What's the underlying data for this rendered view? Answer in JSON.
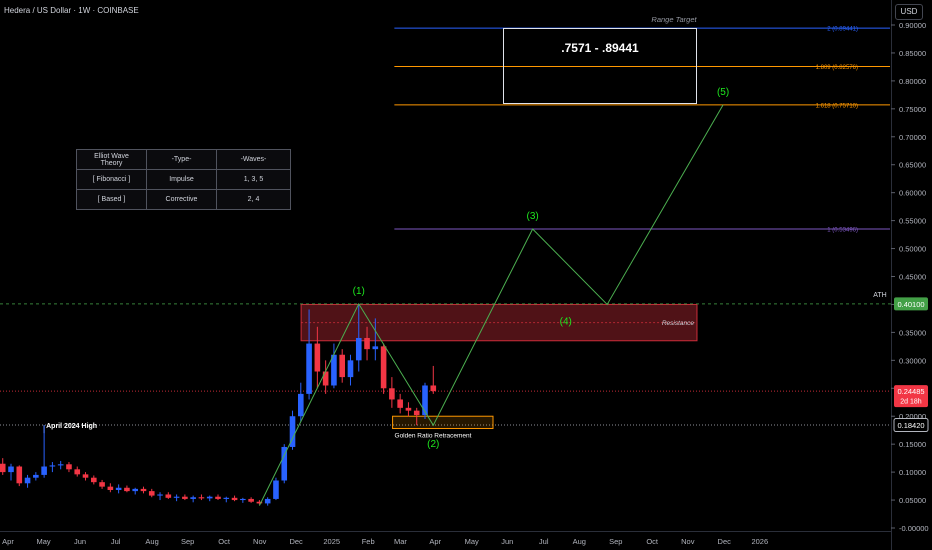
{
  "header": {
    "title": "Hedera / US Dollar · 1W · COINBASE",
    "currency": "USD"
  },
  "table": {
    "rows": [
      [
        "Elliot Wave Theory",
        "-Type-",
        "-Waves-"
      ],
      [
        "[ Fibonacci ]",
        "Impulse",
        "1, 3, 5"
      ],
      [
        "[ Based ]",
        "Corrective",
        "2, 4"
      ]
    ]
  },
  "annotations": {
    "range_target_label": "Range Target",
    "range_text": ".7571 - .89441",
    "resistance_label": "Resistance",
    "golden_label": "Golden Ratio Retracement",
    "april_high_label": "April 2024 High",
    "ath_label": "ATH"
  },
  "colors": {
    "background": "#000000",
    "up": "#2962ff",
    "down": "#f23645",
    "wave": "#4caf50",
    "wave_label": "#1ee81e",
    "fib_outer": "#2962ff",
    "fib_orange": "#ff9800",
    "fib_one": "#7e57c2",
    "resistance": "#f23645",
    "golden_box": "#ff9800",
    "ath_badge": "#43a047",
    "price_badge": "#f23645",
    "text": "#d1d4dc"
  },
  "chart_data": {
    "type": "candlestick",
    "y_axis": {
      "range": [
        0.0,
        0.9
      ],
      "ticks": [
        "0.90000",
        "0.85000",
        "0.80000",
        "0.75000",
        "0.70000",
        "0.65000",
        "0.60000",
        "0.55000",
        "0.50000",
        "0.45000",
        "0.40000",
        "0.35000",
        "0.30000",
        "0.25000",
        "0.20000",
        "0.15000",
        "0.10000",
        "0.05000",
        "-0.00000"
      ]
    },
    "x_axis": {
      "ticks": [
        "Apr",
        "May",
        "Jun",
        "Jul",
        "Aug",
        "Sep",
        "Oct",
        "Nov",
        "Dec",
        "2025",
        "Feb",
        "Mar",
        "Apr",
        "May",
        "Jun",
        "Jul",
        "Aug",
        "Sep",
        "Oct",
        "Nov",
        "Dec",
        "2026"
      ],
      "tick_weeks": [
        0,
        4.3,
        8.7,
        13,
        17.4,
        21.7,
        26.1,
        30.4,
        34.8,
        39.1,
        43.5,
        47.4,
        51.6,
        56,
        60.3,
        64.7,
        69,
        73.4,
        77.8,
        82.1,
        86.5,
        90.8
      ]
    },
    "candles": [
      {
        "w": -2,
        "o": 0.12,
        "h": 0.13,
        "l": 0.105,
        "c": 0.115
      },
      {
        "w": -1,
        "o": 0.115,
        "h": 0.125,
        "l": 0.095,
        "c": 0.1
      },
      {
        "w": 0,
        "o": 0.1,
        "h": 0.115,
        "l": 0.085,
        "c": 0.11
      },
      {
        "w": 1,
        "o": 0.11,
        "h": 0.112,
        "l": 0.075,
        "c": 0.08
      },
      {
        "w": 2,
        "o": 0.08,
        "h": 0.095,
        "l": 0.072,
        "c": 0.09
      },
      {
        "w": 3,
        "o": 0.09,
        "h": 0.1,
        "l": 0.085,
        "c": 0.095
      },
      {
        "w": 4,
        "o": 0.095,
        "h": 0.184,
        "l": 0.09,
        "c": 0.11
      },
      {
        "w": 5,
        "o": 0.11,
        "h": 0.118,
        "l": 0.1,
        "c": 0.112
      },
      {
        "w": 6,
        "o": 0.112,
        "h": 0.12,
        "l": 0.105,
        "c": 0.114
      },
      {
        "w": 7,
        "o": 0.114,
        "h": 0.118,
        "l": 0.1,
        "c": 0.105
      },
      {
        "w": 8,
        "o": 0.105,
        "h": 0.11,
        "l": 0.092,
        "c": 0.096
      },
      {
        "w": 9,
        "o": 0.096,
        "h": 0.1,
        "l": 0.085,
        "c": 0.09
      },
      {
        "w": 10,
        "o": 0.09,
        "h": 0.094,
        "l": 0.078,
        "c": 0.082
      },
      {
        "w": 11,
        "o": 0.082,
        "h": 0.086,
        "l": 0.07,
        "c": 0.074
      },
      {
        "w": 12,
        "o": 0.074,
        "h": 0.08,
        "l": 0.064,
        "c": 0.068
      },
      {
        "w": 13,
        "o": 0.068,
        "h": 0.078,
        "l": 0.062,
        "c": 0.072
      },
      {
        "w": 14,
        "o": 0.072,
        "h": 0.076,
        "l": 0.064,
        "c": 0.066
      },
      {
        "w": 15,
        "o": 0.066,
        "h": 0.072,
        "l": 0.06,
        "c": 0.07
      },
      {
        "w": 16,
        "o": 0.07,
        "h": 0.074,
        "l": 0.062,
        "c": 0.066
      },
      {
        "w": 17,
        "o": 0.066,
        "h": 0.07,
        "l": 0.055,
        "c": 0.058
      },
      {
        "w": 18,
        "o": 0.058,
        "h": 0.064,
        "l": 0.05,
        "c": 0.06
      },
      {
        "w": 19,
        "o": 0.06,
        "h": 0.064,
        "l": 0.052,
        "c": 0.054
      },
      {
        "w": 20,
        "o": 0.054,
        "h": 0.06,
        "l": 0.048,
        "c": 0.056
      },
      {
        "w": 21,
        "o": 0.056,
        "h": 0.06,
        "l": 0.05,
        "c": 0.052
      },
      {
        "w": 22,
        "o": 0.052,
        "h": 0.058,
        "l": 0.046,
        "c": 0.055
      },
      {
        "w": 23,
        "o": 0.055,
        "h": 0.06,
        "l": 0.05,
        "c": 0.053
      },
      {
        "w": 24,
        "o": 0.053,
        "h": 0.058,
        "l": 0.048,
        "c": 0.056
      },
      {
        "w": 25,
        "o": 0.056,
        "h": 0.06,
        "l": 0.05,
        "c": 0.052
      },
      {
        "w": 26,
        "o": 0.052,
        "h": 0.056,
        "l": 0.046,
        "c": 0.054
      },
      {
        "w": 27,
        "o": 0.054,
        "h": 0.058,
        "l": 0.048,
        "c": 0.05
      },
      {
        "w": 28,
        "o": 0.05,
        "h": 0.054,
        "l": 0.045,
        "c": 0.052
      },
      {
        "w": 29,
        "o": 0.052,
        "h": 0.055,
        "l": 0.045,
        "c": 0.047
      },
      {
        "w": 30,
        "o": 0.047,
        "h": 0.05,
        "l": 0.042,
        "c": 0.044
      },
      {
        "w": 31,
        "o": 0.044,
        "h": 0.055,
        "l": 0.04,
        "c": 0.052
      },
      {
        "w": 32,
        "o": 0.052,
        "h": 0.09,
        "l": 0.05,
        "c": 0.085
      },
      {
        "w": 33,
        "o": 0.085,
        "h": 0.15,
        "l": 0.08,
        "c": 0.145
      },
      {
        "w": 34,
        "o": 0.145,
        "h": 0.21,
        "l": 0.14,
        "c": 0.2
      },
      {
        "w": 35,
        "o": 0.2,
        "h": 0.26,
        "l": 0.19,
        "c": 0.24
      },
      {
        "w": 36,
        "o": 0.24,
        "h": 0.391,
        "l": 0.23,
        "c": 0.33
      },
      {
        "w": 37,
        "o": 0.33,
        "h": 0.36,
        "l": 0.25,
        "c": 0.28
      },
      {
        "w": 38,
        "o": 0.28,
        "h": 0.3,
        "l": 0.24,
        "c": 0.255
      },
      {
        "w": 39,
        "o": 0.255,
        "h": 0.33,
        "l": 0.25,
        "c": 0.31
      },
      {
        "w": 40,
        "o": 0.31,
        "h": 0.32,
        "l": 0.26,
        "c": 0.27
      },
      {
        "w": 41,
        "o": 0.27,
        "h": 0.31,
        "l": 0.255,
        "c": 0.3
      },
      {
        "w": 42,
        "o": 0.3,
        "h": 0.401,
        "l": 0.28,
        "c": 0.34
      },
      {
        "w": 43,
        "o": 0.34,
        "h": 0.36,
        "l": 0.3,
        "c": 0.32
      },
      {
        "w": 44,
        "o": 0.32,
        "h": 0.375,
        "l": 0.3,
        "c": 0.325
      },
      {
        "w": 45,
        "o": 0.325,
        "h": 0.33,
        "l": 0.24,
        "c": 0.25
      },
      {
        "w": 46,
        "o": 0.25,
        "h": 0.27,
        "l": 0.215,
        "c": 0.23
      },
      {
        "w": 47,
        "o": 0.23,
        "h": 0.24,
        "l": 0.205,
        "c": 0.215
      },
      {
        "w": 48,
        "o": 0.215,
        "h": 0.225,
        "l": 0.2,
        "c": 0.21
      },
      {
        "w": 49,
        "o": 0.21,
        "h": 0.215,
        "l": 0.184,
        "c": 0.202
      },
      {
        "w": 50,
        "o": 0.202,
        "h": 0.26,
        "l": 0.195,
        "c": 0.255
      },
      {
        "w": 51,
        "o": 0.255,
        "h": 0.29,
        "l": 0.24,
        "c": 0.2449
      }
    ],
    "fib_levels": [
      {
        "value": 0.89441,
        "label": "2 (0.89441)",
        "color": "#2962ff"
      },
      {
        "value": 0.82576,
        "label": "1.809 (0.82576)",
        "color": "#ff9800"
      },
      {
        "value": 0.7571,
        "label": "1.618 (0.75710)",
        "color": "#ff9800"
      },
      {
        "value": 0.53496,
        "label": "1 (0.53496)",
        "color": "#7e57c2"
      }
    ],
    "wave_path": [
      {
        "w": 30,
        "v": 0.04
      },
      {
        "w": 42,
        "v": 0.401
      },
      {
        "w": 51,
        "v": 0.184
      },
      {
        "w": 63,
        "v": 0.535
      },
      {
        "w": 72,
        "v": 0.4
      },
      {
        "w": 86,
        "v": 0.757
      }
    ],
    "wave_labels": [
      {
        "text": "(1)",
        "w": 42,
        "v": 0.401,
        "dy": -10
      },
      {
        "text": "(2)",
        "w": 51,
        "v": 0.184,
        "dy": 22
      },
      {
        "text": "(3)",
        "w": 63,
        "v": 0.535,
        "dy": -10
      },
      {
        "text": "(4)",
        "w": 67,
        "v": 0.4,
        "dy": 20
      },
      {
        "text": "(5)",
        "w": 86,
        "v": 0.757,
        "dy": -10
      }
    ],
    "resistance_zone": {
      "from_w": 36,
      "to_w": 93.5,
      "top": 0.4,
      "bottom": 0.335
    },
    "golden_zone": {
      "from_w": 48.5,
      "to_w": 65,
      "top": 0.2,
      "bottom": 0.178
    },
    "horizontal_lines": [
      {
        "value": 0.401,
        "label": "0.40100",
        "style": "dashed",
        "color": "#43a047"
      },
      {
        "value": 0.1842,
        "label": "0.18420",
        "style": "dotted",
        "color": "#b2b5be"
      },
      {
        "value": 0.2449,
        "label": "0.24485",
        "style": "dotted",
        "color": "#f23645"
      }
    ],
    "price_badge": {
      "value": 0.2449,
      "label": "0.24485",
      "sublabel": "2d 18h"
    }
  }
}
